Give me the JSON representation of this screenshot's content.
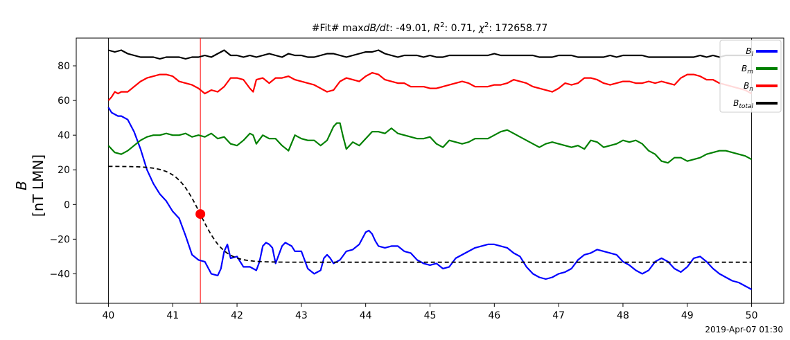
{
  "chart_data": {
    "type": "line",
    "title": "#Fit# maxdB/dt: -49.01, R²: 0.71, χ²: 172658.77",
    "ylabel_line1": "B",
    "ylabel_line2": "[nT LMN]",
    "xlabel": "",
    "timestamp": "2019-Apr-07 01:30",
    "xlim": [
      39.5,
      50.5
    ],
    "ylim": [
      -57,
      96
    ],
    "xticks": [
      40,
      41,
      42,
      43,
      44,
      45,
      46,
      47,
      48,
      49,
      50
    ],
    "xtick_labels": [
      "40",
      "41",
      "42",
      "43",
      "44",
      "45",
      "46",
      "47",
      "48",
      "49",
      "50"
    ],
    "yticks": [
      -40,
      -20,
      0,
      20,
      40,
      60,
      80
    ],
    "ytick_labels": [
      "−40",
      "−20",
      "0",
      "20",
      "40",
      "60",
      "80"
    ],
    "grid": false,
    "legend_position": "top-right",
    "vlines": [
      {
        "x": 40,
        "color": "#000000"
      },
      {
        "x": 50,
        "color": "#000000"
      },
      {
        "x": 41.43,
        "color": "#ff0000"
      }
    ],
    "marker": {
      "x": 41.43,
      "y": -5.5,
      "color": "#ff0000"
    },
    "fit_curve": {
      "color": "#000000",
      "style": "dashed",
      "y_start": 22,
      "y_end": -33.3,
      "x_center": 41.43,
      "width": 0.37
    },
    "series": [
      {
        "name": "B_l",
        "label_main": "B",
        "label_sub": "l",
        "color": "#0000ff",
        "x": [
          40.0,
          40.05,
          40.1,
          40.15,
          40.2,
          40.3,
          40.4,
          40.5,
          40.6,
          40.7,
          40.8,
          40.9,
          41.0,
          41.1,
          41.2,
          41.3,
          41.4,
          41.5,
          41.6,
          41.7,
          41.75,
          41.8,
          41.85,
          41.9,
          42.0,
          42.1,
          42.2,
          42.3,
          42.35,
          42.4,
          42.45,
          42.5,
          42.55,
          42.6,
          42.7,
          42.75,
          42.8,
          42.85,
          42.9,
          43.0,
          43.1,
          43.2,
          43.3,
          43.35,
          43.4,
          43.45,
          43.5,
          43.6,
          43.7,
          43.8,
          43.9,
          44.0,
          44.05,
          44.1,
          44.15,
          44.2,
          44.3,
          44.4,
          44.5,
          44.6,
          44.7,
          44.8,
          44.9,
          45.0,
          45.1,
          45.2,
          45.3,
          45.4,
          45.5,
          45.6,
          45.7,
          45.8,
          45.9,
          46.0,
          46.1,
          46.2,
          46.3,
          46.4,
          46.5,
          46.6,
          46.7,
          46.8,
          46.9,
          47.0,
          47.1,
          47.2,
          47.3,
          47.4,
          47.5,
          47.6,
          47.7,
          47.8,
          47.9,
          48.0,
          48.1,
          48.2,
          48.3,
          48.4,
          48.5,
          48.6,
          48.7,
          48.8,
          48.9,
          49.0,
          49.1,
          49.2,
          49.3,
          49.4,
          49.5,
          49.6,
          49.7,
          49.8,
          49.9,
          50.0
        ],
        "values": [
          56,
          53,
          52,
          51,
          51,
          49,
          42,
          32,
          20,
          12,
          6,
          2,
          -4,
          -8,
          -18,
          -29,
          -32,
          -33,
          -40,
          -41,
          -37,
          -27,
          -23,
          -31,
          -30,
          -36,
          -36,
          -38,
          -33,
          -24,
          -22,
          -23,
          -25,
          -34,
          -24,
          -22,
          -23,
          -24,
          -27,
          -27,
          -37,
          -40,
          -38,
          -31,
          -29,
          -31,
          -34,
          -32,
          -27,
          -26,
          -23,
          -16,
          -15,
          -17,
          -21,
          -24,
          -25,
          -24,
          -24,
          -27,
          -28,
          -32,
          -34,
          -35,
          -34,
          -37,
          -36,
          -31,
          -29,
          -27,
          -25,
          -24,
          -23,
          -23,
          -24,
          -25,
          -28,
          -30,
          -36,
          -40,
          -42,
          -43,
          -42,
          -40,
          -39,
          -37,
          -32,
          -29,
          -28,
          -26,
          -27,
          -28,
          -29,
          -33,
          -35,
          -38,
          -40,
          -38,
          -33,
          -31,
          -33,
          -37,
          -39,
          -36,
          -31,
          -30,
          -33,
          -37,
          -40,
          -42,
          -44,
          -45,
          -47,
          -49
        ]
      },
      {
        "name": "B_m",
        "label_main": "B",
        "label_sub": "m",
        "color": "#008000",
        "x": [
          40.0,
          40.05,
          40.1,
          40.2,
          40.3,
          40.4,
          40.5,
          40.6,
          40.7,
          40.8,
          40.9,
          41.0,
          41.1,
          41.2,
          41.3,
          41.4,
          41.5,
          41.6,
          41.7,
          41.8,
          41.9,
          42.0,
          42.1,
          42.2,
          42.25,
          42.3,
          42.4,
          42.5,
          42.6,
          42.7,
          42.8,
          42.9,
          43.0,
          43.1,
          43.2,
          43.3,
          43.4,
          43.5,
          43.55,
          43.6,
          43.65,
          43.7,
          43.8,
          43.9,
          44.0,
          44.1,
          44.2,
          44.3,
          44.4,
          44.5,
          44.6,
          44.7,
          44.8,
          44.9,
          45.0,
          45.1,
          45.2,
          45.3,
          45.4,
          45.5,
          45.6,
          45.7,
          45.8,
          45.9,
          46.0,
          46.1,
          46.2,
          46.3,
          46.4,
          46.5,
          46.6,
          46.7,
          46.8,
          46.9,
          47.0,
          47.1,
          47.2,
          47.3,
          47.4,
          47.5,
          47.6,
          47.7,
          47.8,
          47.9,
          48.0,
          48.1,
          48.2,
          48.3,
          48.4,
          48.5,
          48.6,
          48.7,
          48.8,
          48.9,
          49.0,
          49.1,
          49.2,
          49.3,
          49.4,
          49.5,
          49.6,
          49.7,
          49.8,
          49.9,
          50.0
        ],
        "values": [
          34,
          32,
          30,
          29,
          31,
          34,
          37,
          39,
          40,
          40,
          41,
          40,
          40,
          41,
          39,
          40,
          39,
          41,
          38,
          39,
          35,
          34,
          37,
          41,
          40,
          35,
          40,
          38,
          38,
          34,
          31,
          40,
          38,
          37,
          37,
          34,
          37,
          45,
          47,
          47,
          39,
          32,
          36,
          34,
          38,
          42,
          42,
          41,
          44,
          41,
          40,
          39,
          38,
          38,
          39,
          35,
          33,
          37,
          36,
          35,
          36,
          38,
          38,
          38,
          40,
          42,
          43,
          41,
          39,
          37,
          35,
          33,
          35,
          36,
          35,
          34,
          33,
          34,
          32,
          37,
          36,
          33,
          34,
          35,
          37,
          36,
          37,
          35,
          31,
          29,
          25,
          24,
          27,
          27,
          25,
          26,
          27,
          29,
          30,
          31,
          31,
          30,
          29,
          28,
          26
        ]
      },
      {
        "name": "B_n",
        "label_main": "B",
        "label_sub": "n",
        "color": "#ff0000",
        "x": [
          40.0,
          40.05,
          40.1,
          40.15,
          40.2,
          40.3,
          40.4,
          40.5,
          40.6,
          40.7,
          40.8,
          40.9,
          41.0,
          41.1,
          41.2,
          41.3,
          41.4,
          41.5,
          41.6,
          41.7,
          41.8,
          41.9,
          42.0,
          42.1,
          42.2,
          42.25,
          42.3,
          42.4,
          42.5,
          42.6,
          42.7,
          42.8,
          42.9,
          43.0,
          43.1,
          43.2,
          43.3,
          43.4,
          43.5,
          43.6,
          43.7,
          43.8,
          43.9,
          44.0,
          44.1,
          44.2,
          44.3,
          44.4,
          44.5,
          44.6,
          44.7,
          44.8,
          44.9,
          45.0,
          45.1,
          45.2,
          45.3,
          45.4,
          45.5,
          45.6,
          45.7,
          45.8,
          45.9,
          46.0,
          46.1,
          46.2,
          46.3,
          46.4,
          46.5,
          46.6,
          46.7,
          46.8,
          46.9,
          47.0,
          47.1,
          47.2,
          47.3,
          47.4,
          47.5,
          47.6,
          47.7,
          47.8,
          47.9,
          48.0,
          48.1,
          48.2,
          48.3,
          48.4,
          48.5,
          48.6,
          48.7,
          48.8,
          48.9,
          49.0,
          49.1,
          49.2,
          49.3,
          49.4,
          49.5,
          49.6,
          49.7,
          49.8,
          49.9,
          50.0
        ],
        "values": [
          60,
          62,
          65,
          64,
          65,
          65,
          68,
          71,
          73,
          74,
          75,
          75,
          74,
          71,
          70,
          69,
          67,
          64,
          66,
          65,
          68,
          73,
          73,
          72,
          67,
          65,
          72,
          73,
          70,
          73,
          73,
          74,
          72,
          71,
          70,
          69,
          67,
          65,
          66,
          71,
          73,
          72,
          71,
          74,
          76,
          75,
          72,
          71,
          70,
          70,
          68,
          68,
          68,
          67,
          67,
          68,
          69,
          70,
          71,
          70,
          68,
          68,
          68,
          69,
          69,
          70,
          72,
          71,
          70,
          68,
          67,
          66,
          65,
          67,
          70,
          69,
          70,
          73,
          73,
          72,
          70,
          69,
          70,
          71,
          71,
          70,
          70,
          71,
          70,
          71,
          70,
          69,
          73,
          75,
          75,
          74,
          72,
          72,
          70,
          69,
          68,
          67,
          66,
          64
        ]
      },
      {
        "name": "B_total",
        "label_main": "B",
        "label_sub": "total",
        "color": "#000000",
        "x": [
          40.0,
          40.1,
          40.2,
          40.3,
          40.4,
          40.5,
          40.6,
          40.7,
          40.8,
          40.9,
          41.0,
          41.1,
          41.2,
          41.3,
          41.4,
          41.5,
          41.6,
          41.7,
          41.8,
          41.9,
          42.0,
          42.1,
          42.2,
          42.3,
          42.4,
          42.5,
          42.6,
          42.7,
          42.8,
          42.9,
          43.0,
          43.1,
          43.2,
          43.3,
          43.4,
          43.5,
          43.6,
          43.7,
          43.8,
          43.9,
          44.0,
          44.1,
          44.2,
          44.3,
          44.4,
          44.5,
          44.6,
          44.7,
          44.8,
          44.9,
          45.0,
          45.1,
          45.2,
          45.3,
          45.4,
          45.5,
          45.6,
          45.7,
          45.8,
          45.9,
          46.0,
          46.1,
          46.2,
          46.3,
          46.4,
          46.5,
          46.6,
          46.7,
          46.8,
          46.9,
          47.0,
          47.1,
          47.2,
          47.3,
          47.4,
          47.5,
          47.6,
          47.7,
          47.8,
          47.9,
          48.0,
          48.1,
          48.2,
          48.3,
          48.4,
          48.5,
          48.6,
          48.7,
          48.8,
          48.9,
          49.0,
          49.1,
          49.2,
          49.3,
          49.4,
          49.5,
          49.6,
          49.7,
          49.8,
          49.9,
          50.0
        ],
        "values": [
          89,
          88,
          89,
          87,
          86,
          85,
          85,
          85,
          84,
          85,
          85,
          85,
          84,
          85,
          85,
          86,
          85,
          87,
          89,
          86,
          86,
          85,
          86,
          85,
          86,
          87,
          86,
          85,
          87,
          86,
          86,
          85,
          85,
          86,
          87,
          87,
          86,
          85,
          86,
          87,
          88,
          88,
          89,
          87,
          86,
          85,
          86,
          86,
          86,
          85,
          86,
          85,
          85,
          86,
          86,
          86,
          86,
          86,
          86,
          86,
          87,
          86,
          86,
          86,
          86,
          86,
          86,
          85,
          85,
          85,
          86,
          86,
          86,
          85,
          85,
          85,
          85,
          85,
          86,
          85,
          86,
          86,
          86,
          86,
          85,
          85,
          85,
          85,
          85,
          85,
          85,
          85,
          86,
          85,
          86,
          85,
          86,
          86,
          86,
          86,
          86
        ]
      }
    ]
  }
}
